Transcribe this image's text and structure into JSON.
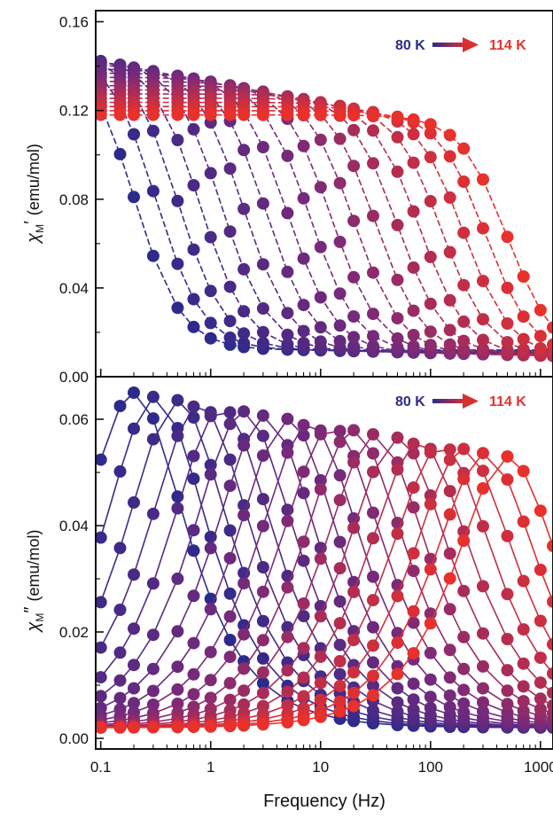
{
  "chart_data": [
    {
      "type": "line",
      "panel": "top",
      "ylabel_symbol": "χ",
      "ylabel_subscript": "M",
      "ylabel_prime": "′",
      "ylabel_unit": "(emu/mol)",
      "ylim": [
        0.0,
        0.165
      ],
      "yticks": [
        "0.00",
        "0.04",
        "0.08",
        "0.12",
        "0.16"
      ],
      "xlim": [
        0.09,
        1300
      ],
      "x_scale": "log",
      "legend": {
        "start": "80 K",
        "end": "114 K",
        "start_color": "#2e2a8c",
        "end_color": "#e8302c",
        "placement": "top-right"
      },
      "temperature_range_K": [
        80,
        114
      ],
      "series_count": 18,
      "frequencies_Hz": [
        0.1,
        0.15,
        0.2,
        0.3,
        0.5,
        0.7,
        1,
        1.5,
        2,
        3,
        5,
        7,
        10,
        15,
        20,
        30,
        50,
        70,
        100,
        150,
        200,
        300,
        500,
        700,
        1000,
        1300
      ],
      "chi_high_range": [
        0.15,
        0.118
      ],
      "chi_low_range": [
        0.012,
        0.008
      ]
    },
    {
      "type": "line",
      "panel": "bottom",
      "ylabel_symbol": "χ",
      "ylabel_subscript": "M",
      "ylabel_prime": "″",
      "ylabel_unit": "(emu/mol)",
      "xlabel": "Frequency (Hz)",
      "ylim": [
        -0.002,
        0.068
      ],
      "yticks": [
        "0.00",
        "0.02",
        "0.04",
        "0.06"
      ],
      "xticks": [
        "0.1",
        "1",
        "10",
        "100",
        "1000"
      ],
      "xtick_values": [
        0.1,
        1,
        10,
        100,
        1000
      ],
      "xlim": [
        0.09,
        1300
      ],
      "x_scale": "log",
      "legend": {
        "start": "80 K",
        "end": "114 K",
        "start_color": "#2e2a8c",
        "end_color": "#e8302c",
        "placement": "top-right"
      },
      "temperature_range_K": [
        80,
        114
      ],
      "series_count": 18,
      "peak_frequency_range_Hz": [
        0.2,
        500
      ],
      "peak_height_range": [
        0.065,
        0.053
      ],
      "baseline": 0.002
    }
  ],
  "colors": {
    "cold": "#2e2a8c",
    "mid": "#7a2a7a",
    "hot": "#e8302c"
  }
}
